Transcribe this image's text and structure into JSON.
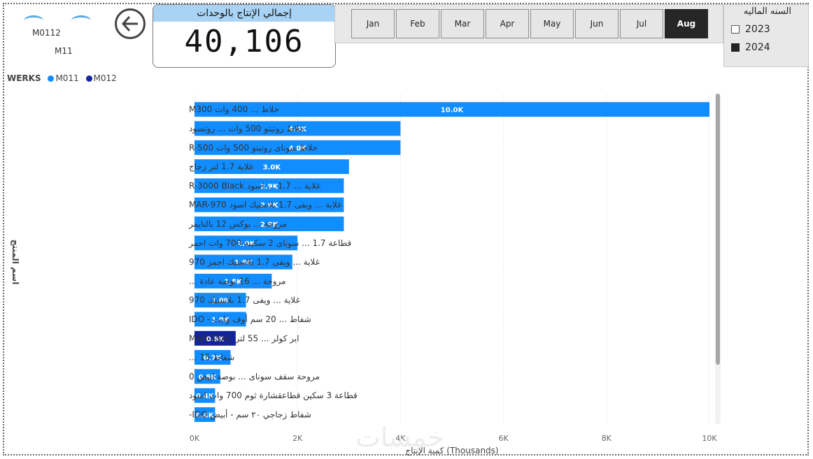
{
  "logo": {
    "text_top": "M0112",
    "text_bottom": "M11"
  },
  "kpi": {
    "title": "إجمالي الإنتاج بالوحدات",
    "value": "40,106"
  },
  "months": [
    "Jan",
    "Feb",
    "Mar",
    "Apr",
    "May",
    "Jun",
    "Jul",
    "Aug"
  ],
  "active_month": "Aug",
  "year_slicer": {
    "title": "السنه الماليه",
    "options": [
      {
        "label": "2023",
        "checked": false
      },
      {
        "label": "2024",
        "checked": true
      }
    ]
  },
  "colors": {
    "M011": "#118DFF",
    "M012": "#12239E",
    "kpi_header": "#A8D3F4",
    "active_month": "#262626"
  },
  "watermark": "خمسات",
  "chart_data": {
    "type": "bar",
    "orientation": "horizontal",
    "legend": {
      "title": "WERKS",
      "entries": [
        {
          "name": "M011",
          "color": "#118DFF"
        },
        {
          "name": "M012",
          "color": "#12239E"
        }
      ]
    },
    "xlabel": "كمية الإنتاج (Thousands)",
    "ylabel": "اسم المنتج",
    "xlim": [
      0,
      10
    ],
    "xticks": [
      "0K",
      "2K",
      "4K",
      "6K",
      "8K",
      "10K"
    ],
    "grid": true,
    "categories": [
      "خلاط ... 400 وات M300",
      "خلاط روتيتو 500 وات ... روتسود",
      "خلاط سوناى روتيتو 500 وات R-500",
      "غلاية 1.7 لتر زجاج",
      "غلاية ... 1.7 ... اسود R-3000 Black",
      "غلاية ... ويفى 1.7 بلاستيك اسود MAR-970",
      "مروحة ... بوكس 12 بالتايمر",
      "قطاعة 1.7 ... سوناى 2 سكينة 700 وات احمر",
      "غلاية ... ويفى 1.7 بلاستيك احمر 970",
      "مروحة ... 16 بوصة عادة ...",
      "غلاية ... ويفى 1.7 بلاستيك 970",
      "شفاط ... 20 سم أوف وايت - IDO",
      "اير كولر ... 55 لتر MAR-55AC",
      "شفاط 15 ...",
      "مروحة سقف سوناى ... بوصة ابيض 0",
      "قطاعة 3 سكين قطاعقشارة ثوم 700 وات اسود",
      "شفاط زجاجي ٢٠ سم - أبيض IDO-"
    ],
    "values": [
      10.0,
      4.0,
      4.0,
      3.0,
      2.9,
      2.9,
      2.9,
      2.0,
      1.9,
      1.5,
      1.0,
      1.0,
      0.8,
      0.7,
      0.5,
      0.4,
      0.4
    ],
    "data_labels": [
      "10.0K",
      "4.0K",
      "4.0K",
      "3.0K",
      "2.9K",
      "2.9K",
      "2.9K",
      "2.0K",
      "1.9K",
      "1.5K",
      "1.0K",
      "1.0K",
      "0.8K",
      "0.7K",
      "0.5K",
      "0.4K",
      "0.4K"
    ],
    "series_by_bar": [
      "M011",
      "M011",
      "M011",
      "M011",
      "M011",
      "M011",
      "M011",
      "M011",
      "M011",
      "M011",
      "M011",
      "M011",
      "M012",
      "M011",
      "M011",
      "M011",
      "M011"
    ]
  }
}
